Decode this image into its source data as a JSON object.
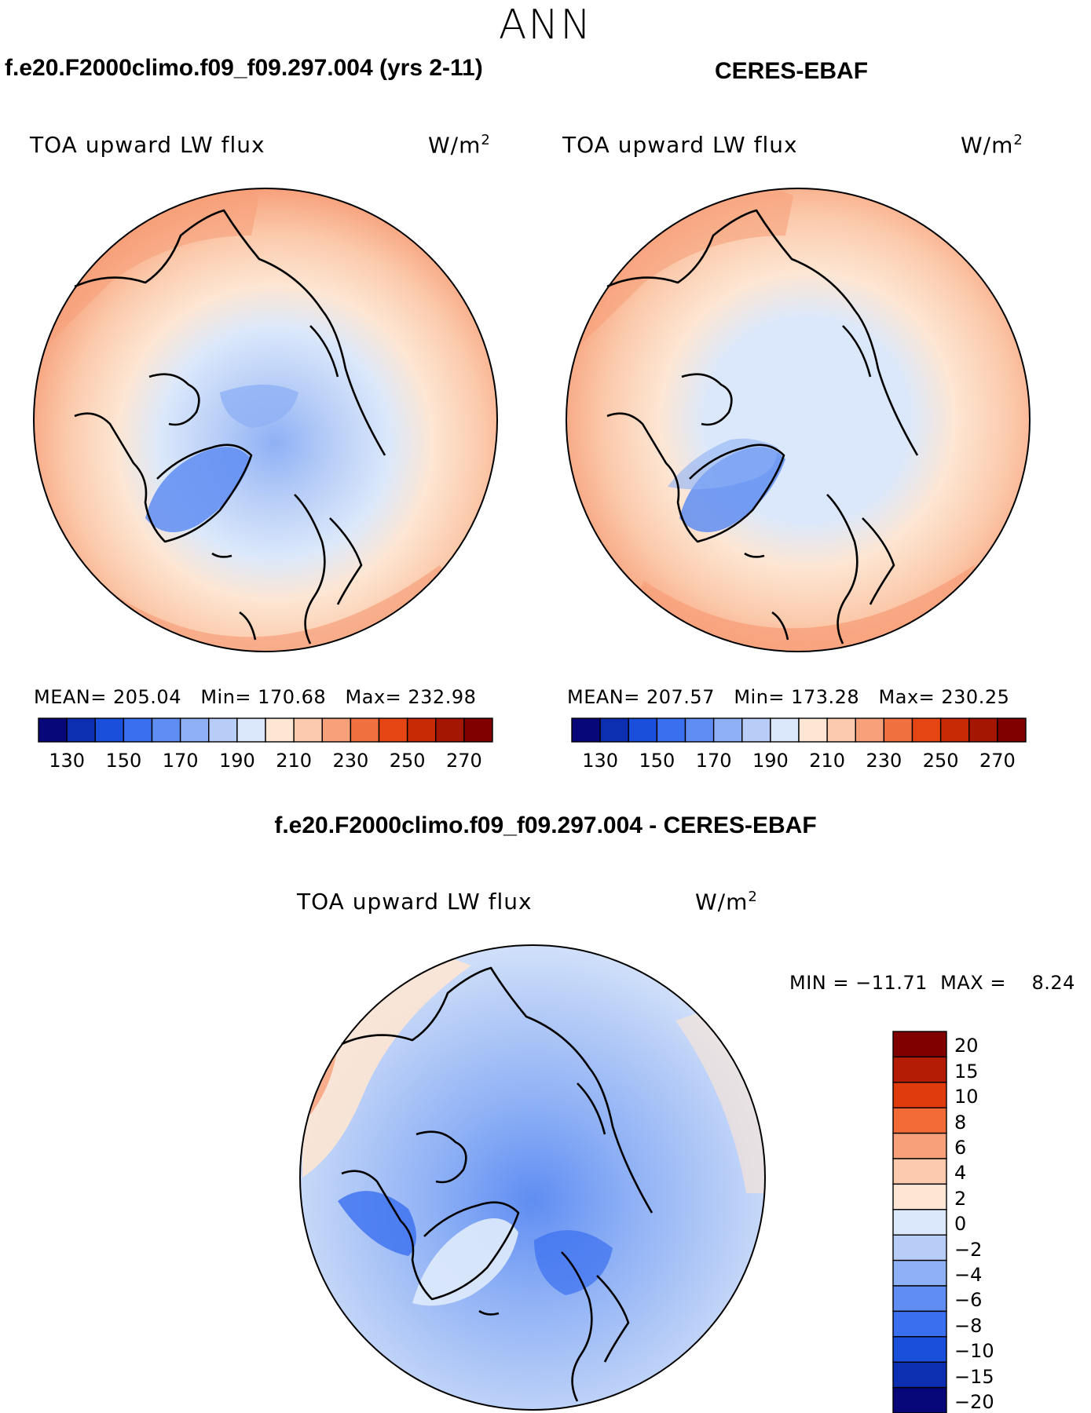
{
  "season": "ANN",
  "panels": [
    {
      "case_title": "f.e20.F2000climo.f09_f09.297.004 (yrs 2-11)",
      "variable": "TOA upward LW flux",
      "units": "W/m",
      "units_sup": "2",
      "stats_text": "MEAN= 205.04   Min= 170.68   Max= 232.98"
    },
    {
      "case_title": "CERES-EBAF",
      "variable": "TOA upward LW flux",
      "units": "W/m",
      "units_sup": "2",
      "stats_text": "MEAN= 207.57   Min= 173.28   Max= 230.25"
    },
    {
      "case_title": "f.e20.F2000climo.f09_f09.297.004 - CERES-EBAF",
      "variable": "TOA upward LW flux",
      "units": "W/m",
      "units_sup": "2",
      "stats_text": "MIN = −11.71  MAX =    8.24"
    }
  ],
  "chart_data": [
    {
      "type": "heatmap",
      "projection": "north-polar-stereographic",
      "title": "f.e20.F2000climo.f09_f09.297.004 (yrs 2-11)",
      "variable": "TOA upward LW flux",
      "units": "W/m^2",
      "mean": 205.04,
      "min": 170.68,
      "max": 232.98,
      "colorbar": {
        "levels": [
          120,
          130,
          140,
          150,
          160,
          170,
          180,
          190,
          200,
          210,
          220,
          230,
          240,
          250,
          260,
          270,
          280
        ],
        "tick_labels": [
          "130",
          "150",
          "170",
          "190",
          "210",
          "230",
          "250",
          "270"
        ],
        "colors": [
          "#07077a",
          "#0b2fb0",
          "#1a4fdc",
          "#3a6ff0",
          "#5f8df2",
          "#8eb0f5",
          "#b7cdf7",
          "#dbe8fb",
          "#fde6d3",
          "#fbc9ab",
          "#f7a07a",
          "#f07040",
          "#e54613",
          "#c82a05",
          "#a41502",
          "#800000"
        ]
      }
    },
    {
      "type": "heatmap",
      "projection": "north-polar-stereographic",
      "title": "CERES-EBAF",
      "variable": "TOA upward LW flux",
      "units": "W/m^2",
      "mean": 207.57,
      "min": 173.28,
      "max": 230.25,
      "colorbar": {
        "levels": [
          120,
          130,
          140,
          150,
          160,
          170,
          180,
          190,
          200,
          210,
          220,
          230,
          240,
          250,
          260,
          270,
          280
        ],
        "tick_labels": [
          "130",
          "150",
          "170",
          "190",
          "210",
          "230",
          "250",
          "270"
        ],
        "colors": [
          "#07077a",
          "#0b2fb0",
          "#1a4fdc",
          "#3a6ff0",
          "#5f8df2",
          "#8eb0f5",
          "#b7cdf7",
          "#dbe8fb",
          "#fde6d3",
          "#fbc9ab",
          "#f7a07a",
          "#f07040",
          "#e54613",
          "#c82a05",
          "#a41502",
          "#800000"
        ]
      }
    },
    {
      "type": "heatmap",
      "projection": "north-polar-stereographic",
      "title": "f.e20.F2000climo.f09_f09.297.004 - CERES-EBAF",
      "variable": "TOA upward LW flux",
      "units": "W/m^2",
      "min": -11.71,
      "max": 8.24,
      "colorbar": {
        "tick_labels": [
          "20",
          "15",
          "10",
          "8",
          "6",
          "4",
          "2",
          "0",
          "−2",
          "−4",
          "−6",
          "−8",
          "−10",
          "−15",
          "−20"
        ],
        "colors": [
          "#800000",
          "#b51c05",
          "#df3b0c",
          "#f26a35",
          "#f7a07a",
          "#fbc9ab",
          "#fde6d3",
          "#dbe8fb",
          "#b7cdf7",
          "#8eb0f5",
          "#5f8df2",
          "#3a6ff0",
          "#1a4fdc",
          "#0b2fb0",
          "#07077a"
        ]
      }
    }
  ]
}
